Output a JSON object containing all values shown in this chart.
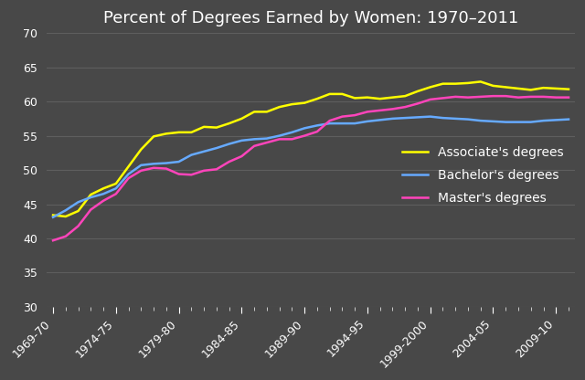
{
  "title": "Percent of Degrees Earned by Women: 1970–2011",
  "background_color": "#484848",
  "text_color": "white",
  "grid_color": "#5e5e5e",
  "x_labels": [
    "1969-70",
    "1974-75",
    "1979-80",
    "1984-85",
    "1989-90",
    "1994-95",
    "1999-2000",
    "2004-05",
    "2009-10"
  ],
  "ylim": [
    30,
    70
  ],
  "yticks": [
    30,
    35,
    40,
    45,
    50,
    55,
    60,
    65,
    70
  ],
  "series": [
    {
      "name": "Associate's degrees",
      "color": "#ffff00",
      "data_x": [
        0,
        1,
        2,
        3,
        4,
        5,
        6,
        7,
        8,
        9,
        10,
        11,
        12,
        13,
        14,
        15,
        16,
        17,
        18,
        19,
        20,
        21,
        22,
        23,
        24,
        25,
        26,
        27,
        28,
        29,
        30,
        31,
        32,
        33,
        34,
        35,
        36,
        37,
        38,
        39,
        40,
        41
      ],
      "data_y": [
        43.4,
        43.2,
        44.0,
        46.4,
        47.3,
        48.0,
        50.5,
        53.0,
        54.9,
        55.3,
        55.5,
        55.5,
        56.3,
        56.2,
        56.8,
        57.5,
        58.5,
        58.5,
        59.2,
        59.6,
        59.8,
        60.4,
        61.1,
        61.1,
        60.5,
        60.6,
        60.4,
        60.6,
        60.8,
        61.5,
        62.1,
        62.6,
        62.6,
        62.7,
        62.9,
        62.3,
        62.1,
        61.9,
        61.7,
        62.0,
        61.9,
        61.8
      ]
    },
    {
      "name": "Bachelor's degrees",
      "color": "#66aaff",
      "data_x": [
        0,
        1,
        2,
        3,
        4,
        5,
        6,
        7,
        8,
        9,
        10,
        11,
        12,
        13,
        14,
        15,
        16,
        17,
        18,
        19,
        20,
        21,
        22,
        23,
        24,
        25,
        26,
        27,
        28,
        29,
        30,
        31,
        32,
        33,
        34,
        35,
        36,
        37,
        38,
        39,
        40,
        41
      ],
      "data_y": [
        43.1,
        44.1,
        45.3,
        46.0,
        46.5,
        47.3,
        49.4,
        50.7,
        50.9,
        51.0,
        51.2,
        52.2,
        52.7,
        53.2,
        53.8,
        54.3,
        54.5,
        54.6,
        55.0,
        55.5,
        56.1,
        56.5,
        56.8,
        56.8,
        56.8,
        57.1,
        57.3,
        57.5,
        57.6,
        57.7,
        57.8,
        57.6,
        57.5,
        57.4,
        57.2,
        57.1,
        57.0,
        57.0,
        57.0,
        57.2,
        57.3,
        57.4
      ]
    },
    {
      "name": "Master's degrees",
      "color": "#ff44bb",
      "data_x": [
        0,
        1,
        2,
        3,
        4,
        5,
        6,
        7,
        8,
        9,
        10,
        11,
        12,
        13,
        14,
        15,
        16,
        17,
        18,
        19,
        20,
        21,
        22,
        23,
        24,
        25,
        26,
        27,
        28,
        29,
        30,
        31,
        32,
        33,
        34,
        35,
        36,
        37,
        38,
        39,
        40,
        41
      ],
      "data_y": [
        39.7,
        40.3,
        41.8,
        44.2,
        45.5,
        46.5,
        48.8,
        49.9,
        50.3,
        50.2,
        49.4,
        49.3,
        49.9,
        50.1,
        51.2,
        52.0,
        53.5,
        54.0,
        54.5,
        54.5,
        55.0,
        55.6,
        57.2,
        57.8,
        58.0,
        58.5,
        58.7,
        58.9,
        59.2,
        59.7,
        60.3,
        60.5,
        60.7,
        60.6,
        60.7,
        60.8,
        60.8,
        60.6,
        60.7,
        60.7,
        60.6,
        60.6
      ]
    }
  ],
  "n_points": 42,
  "x_tick_positions": [
    0,
    5,
    10,
    15,
    20,
    25,
    30,
    35,
    40
  ],
  "legend_fontsize": 10,
  "title_fontsize": 13,
  "tick_fontsize": 9
}
